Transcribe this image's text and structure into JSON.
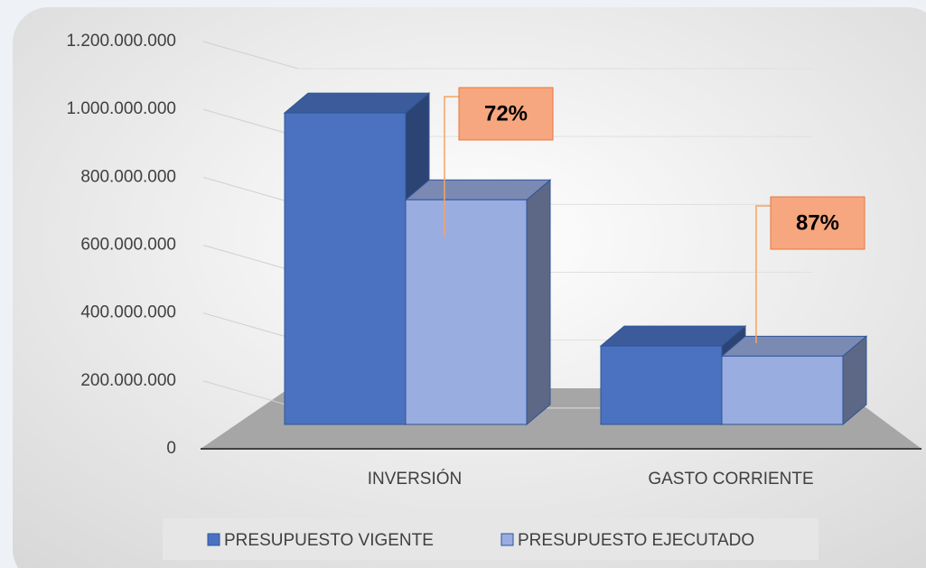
{
  "chart_data": {
    "type": "bar3d",
    "categories": [
      "INVERSIÓN",
      "GASTO CORRIENTE"
    ],
    "series": [
      {
        "name": "PRESUPUESTO VIGENTE",
        "color": "#4a72c0",
        "values": [
          1040000000,
          262000000
        ]
      },
      {
        "name": "PRESUPUESTO EJECUTADO",
        "color": "#9aade0",
        "values": [
          750000000,
          228000000
        ]
      }
    ],
    "annotations": [
      "72%",
      "87%"
    ],
    "ylim": [
      0,
      1200000000
    ],
    "yticks": [
      0,
      {
        "value": 200000000,
        "label": "200.000.000"
      },
      {
        "value": 400000000,
        "label": "400.000.000"
      },
      {
        "value": 600000000,
        "label": "600.000.000"
      },
      {
        "value": 800000000,
        "label": "800.000.000"
      },
      {
        "value": 1000000000,
        "label": "1.000.000.000"
      },
      {
        "value": 1200000000,
        "label": "1.200.000.000"
      }
    ],
    "grid": true
  }
}
